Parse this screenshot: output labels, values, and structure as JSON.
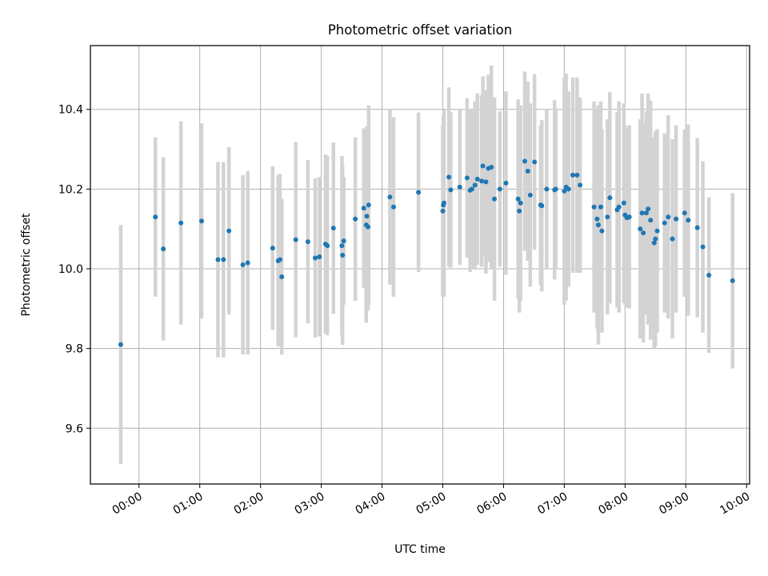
{
  "chart_data": {
    "type": "scatter",
    "title": "Photometric offset variation",
    "xlabel": "UTC time",
    "ylabel": "Photometric offset",
    "x_unit": "hours since 00:00 UTC",
    "xlim": [
      -0.8,
      10.05
    ],
    "ylim": [
      9.46,
      10.56
    ],
    "xticks": [
      {
        "value": 0,
        "label": "00:00"
      },
      {
        "value": 1,
        "label": "01:00"
      },
      {
        "value": 2,
        "label": "02:00"
      },
      {
        "value": 3,
        "label": "03:00"
      },
      {
        "value": 4,
        "label": "04:00"
      },
      {
        "value": 5,
        "label": "05:00"
      },
      {
        "value": 6,
        "label": "06:00"
      },
      {
        "value": 7,
        "label": "07:00"
      },
      {
        "value": 8,
        "label": "08:00"
      },
      {
        "value": 9,
        "label": "09:00"
      },
      {
        "value": 10,
        "label": "10:00"
      }
    ],
    "yticks": [
      {
        "value": 9.6,
        "label": "9.6"
      },
      {
        "value": 9.8,
        "label": "9.8"
      },
      {
        "value": 10.0,
        "label": "10.0"
      },
      {
        "value": 10.2,
        "label": "10.2"
      },
      {
        "value": 10.4,
        "label": "10.4"
      }
    ],
    "grid": true,
    "point_color": "#1f77b4",
    "errorbar_color": "#d3d3d3",
    "series": [
      {
        "name": "offset",
        "x": [
          -0.3,
          0.27,
          0.4,
          0.69,
          1.03,
          1.3,
          1.39,
          1.48,
          1.71,
          1.79,
          2.2,
          2.29,
          2.32,
          2.35,
          2.58,
          2.78,
          2.9,
          2.97,
          3.07,
          3.1,
          3.2,
          3.34,
          3.35,
          3.37,
          3.56,
          3.7,
          3.74,
          3.75,
          3.77,
          3.78,
          4.13,
          4.19,
          4.6,
          5.0,
          5.01,
          5.02,
          5.1,
          5.13,
          5.28,
          5.4,
          5.45,
          5.48,
          5.53,
          5.57,
          5.64,
          5.66,
          5.71,
          5.75,
          5.8,
          5.85,
          5.94,
          6.04,
          6.24,
          6.26,
          6.28,
          6.35,
          6.4,
          6.44,
          6.51,
          6.61,
          6.63,
          6.71,
          6.84,
          6.86,
          7.0,
          7.03,
          7.07,
          7.14,
          7.21,
          7.26,
          7.49,
          7.54,
          7.56,
          7.6,
          7.62,
          7.71,
          7.75,
          7.87,
          7.9,
          7.98,
          8.0,
          8.03,
          8.07,
          8.25,
          8.28,
          8.3,
          8.35,
          8.38,
          8.42,
          8.48,
          8.5,
          8.53,
          8.65,
          8.71,
          8.78,
          8.84,
          8.98,
          9.04,
          9.19,
          9.28,
          9.38,
          9.77
        ],
        "y": [
          9.81,
          10.13,
          10.05,
          10.115,
          10.12,
          10.023,
          10.023,
          10.095,
          10.01,
          10.015,
          10.052,
          10.02,
          10.023,
          9.98,
          10.073,
          10.068,
          10.027,
          10.03,
          10.062,
          10.058,
          10.102,
          10.058,
          10.034,
          10.07,
          10.125,
          10.152,
          10.11,
          10.132,
          10.105,
          10.16,
          10.18,
          10.155,
          10.192,
          10.145,
          10.16,
          10.165,
          10.23,
          10.198,
          10.205,
          10.228,
          10.197,
          10.2,
          10.21,
          10.225,
          10.22,
          10.258,
          10.218,
          10.252,
          10.255,
          10.175,
          10.2,
          10.215,
          10.175,
          10.145,
          10.165,
          10.27,
          10.245,
          10.185,
          10.268,
          10.16,
          10.158,
          10.2,
          10.198,
          10.2,
          10.195,
          10.205,
          10.2,
          10.235,
          10.235,
          10.21,
          10.155,
          10.125,
          10.11,
          10.155,
          10.095,
          10.13,
          10.178,
          10.148,
          10.155,
          10.165,
          10.135,
          10.128,
          10.13,
          10.1,
          10.14,
          10.09,
          10.14,
          10.15,
          10.122,
          10.065,
          10.075,
          10.095,
          10.115,
          10.13,
          10.075,
          10.125,
          10.14,
          10.122,
          10.103,
          10.055,
          9.984,
          9.97
        ],
        "yerr": [
          0.3,
          0.2,
          0.23,
          0.255,
          0.245,
          0.245,
          0.245,
          0.21,
          0.225,
          0.23,
          0.205,
          0.215,
          0.215,
          0.195,
          0.245,
          0.205,
          0.2,
          0.2,
          0.225,
          0.225,
          0.215,
          0.225,
          0.225,
          0.16,
          0.205,
          0.2,
          0.245,
          0.225,
          0.21,
          0.25,
          0.22,
          0.225,
          0.2,
          0.215,
          0.225,
          0.235,
          0.225,
          0.195,
          0.195,
          0.2,
          0.205,
          0.2,
          0.21,
          0.215,
          0.215,
          0.225,
          0.23,
          0.235,
          0.255,
          0.255,
          0.195,
          0.23,
          0.25,
          0.255,
          0.245,
          0.225,
          0.225,
          0.23,
          0.22,
          0.2,
          0.215,
          0.2,
          0.225,
          0.2,
          0.285,
          0.285,
          0.245,
          0.245,
          0.245,
          0.22,
          0.265,
          0.275,
          0.3,
          0.265,
          0.255,
          0.245,
          0.265,
          0.245,
          0.265,
          0.25,
          0.225,
          0.225,
          0.23,
          0.275,
          0.3,
          0.275,
          0.255,
          0.29,
          0.3,
          0.265,
          0.27,
          0.255,
          0.225,
          0.255,
          0.25,
          0.235,
          0.21,
          0.24,
          0.225,
          0.215,
          0.195,
          0.22
        ]
      }
    ]
  }
}
